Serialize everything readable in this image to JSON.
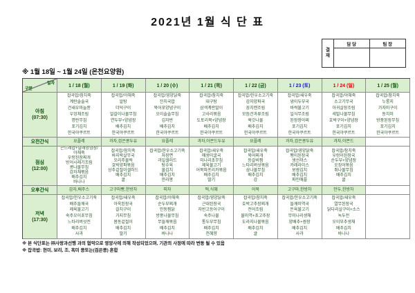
{
  "title": "2021년 1월 식 단 표",
  "approval": {
    "label": "결재",
    "col1": "담 당",
    "col2": "팀 장"
  },
  "period": "※  1월 18일  ~  1월 24일  (온천요양원)",
  "table": {
    "corner": {
      "top": "일자",
      "bottom": "구분"
    },
    "days": [
      {
        "label": "1 / 18 (월)",
        "color": "green"
      },
      {
        "label": "1 / 19 (화)",
        "color": "green"
      },
      {
        "label": "1 / 20 (수)",
        "color": "green"
      },
      {
        "label": "1 / 21 (목)",
        "color": "green"
      },
      {
        "label": "1 / 22 (금)",
        "color": "green"
      },
      {
        "label": "1 / 23 (토)",
        "color": "blue"
      },
      {
        "label": "1 / 24 (일)",
        "color": "red"
      },
      {
        "label": "1 / 25 (월)",
        "color": "green"
      }
    ],
    "rows": [
      {
        "key": "breakfast",
        "label": "아침",
        "time": "(07:30)",
        "cells": [
          [
            "잡곡밥/참치죽",
            "계란솔솔국",
            "건새우마늘쫑",
            "우엉채조림",
            "명란무침",
            "포기김치",
            "한국야쿠르트"
          ],
          [
            "잡곡밥/야채죽",
            "알탕",
            "더덕구이",
            "얼갈이나물무침",
            "연두부+양념장",
            "배추김치",
            "한국야쿠르트"
          ],
          [
            "잡곡밥/영양닭죽",
            "잔치국밥",
            "북어포양념구이",
            "오이솔솔무침",
            "김자반",
            "배추김치",
            "한국야쿠르트"
          ],
          [
            "잡곡밥/참치죽",
            "대구탕",
            "삼색계란말이",
            "고사리볶음",
            "도토리묵+양념장",
            "배추김치",
            "한국야쿠르트"
          ],
          [
            "잡곡밥/한우소고기죽",
            "감자양파국",
            "꽁치캔조림",
            "모듬건과류조림",
            "쑥갓나물",
            "배추김치",
            "한국야쿠르트"
          ],
          [
            "잡곡밥/새우죽",
            "냉이두부국",
            "바싹불고기",
            "일식무조림",
            "된장장아찌",
            "포기김치",
            "한국야쿠르트"
          ],
          [
            "잡곡밥/야채죽",
            "소고기무국",
            "아귀살장조림",
            "세발나물무침",
            "호박구이+양념장",
            "포기김치",
            "한국야쿠르트"
          ],
          [
            "잡곡밥/참치죽",
            "누룽지",
            "가자미구이",
            "동치미",
            "방풍된장무침",
            "포기김치",
            "한국야쿠르트"
          ]
        ]
      },
      {
        "key": "am-snack",
        "label": "오전간식",
        "cells": [
          [
            "요플레"
          ],
          [
            "과자,검은콩두유"
          ],
          [
            "요플레"
          ],
          [
            "과자,아몬드두유"
          ],
          [
            "요플레"
          ],
          [
            "과자,검은콩두유"
          ],
          [
            "과자,아몬드"
          ],
          []
        ]
      },
      {
        "key": "lunch",
        "label": "점심",
        "time": "(12:00)",
        "cells": [
          [
            "곤드레밥+달래양념장/",
            "야채죽",
            "우렁된장찌개",
            "방어시래기조림",
            "콩나물무침",
            "감자채볶음",
            "배추김치",
            "바나나"
          ],
          [
            "잡곡밥/참치죽",
            "바지락살무국",
            "오리주물럭",
            "호박양파볶음",
            "상추겉절이샐러드",
            "배추김치",
            "귤"
          ],
          [
            "잡곡밥/한우소고기죽",
            "자장면",
            "과일샐러드",
            "탕수육",
            "물김치",
            "배추김치",
            "한라봉"
          ],
          [
            "잡곡밥/새우죽",
            "매생이굴국",
            "미나리초무침",
            "제육불고기",
            "어묵파프리카볶음",
            "배추김치",
            "딸기"
          ],
          [
            "잡곡밥/새우죽",
            "북어찌개",
            "등갈비찜",
            "느타리버섯볶음",
            "삼나물무침",
            "배추김치",
            "감"
          ],
          [
            "잡곡밥/영양닭죽",
            "팽이된장국",
            "생선까스",
            "카레라이스",
            "보쌈김치",
            "배추김치",
            "파인애플"
          ],
          [
            "잡곡밥/참치죽",
            "우렁이된장국",
            "순두부+양념장",
            "오징어볶음",
            "취나물무침",
            "배추김치",
            "귤"
          ],
          []
        ]
      },
      {
        "key": "pm-snack",
        "label": "오후간식",
        "cells": [
          [
            "감자,배주스"
          ],
          [
            "고구마빵,한방차"
          ],
          [
            "피자"
          ],
          [
            "떡,식혜"
          ],
          [
            "어묵"
          ],
          [
            "고구마,한방차"
          ],
          [
            "만두,한방차"
          ],
          []
        ]
      },
      {
        "key": "dinner",
        "label": "저녁",
        "time": "(17:30)",
        "cells": [
          [
            "잡곡밥/한우소고기죽",
            "배추들깨국",
            "제육불고기",
            "숙주오이초무침",
            "느타리버섯전",
            "배추김치",
            "사과"
          ],
          [
            "잡곡밥/새우죽",
            "아욱된장국",
            "갈치구이",
            "가지무침",
            "봄동겉절이",
            "배추김치",
            "딸기"
          ],
          [
            "잡곡밥/야채죽",
            "순두부찌개",
            "안동찜닭",
            "방풍나물무침",
            "무들깨볶음",
            "배추김치",
            "바나나"
          ],
          [
            "잡곡밥/영양닭죽",
            "근대된장국",
            "자반고등어구이",
            "숙주나물",
            "통두부무침",
            "배추김치",
            "천혜향"
          ],
          [
            "잡곡밥/참치죽",
            "호박고추장찌개",
            "전어조림",
            "물미역+초고추장",
            "도라지나물볶음",
            "배추김치",
            "귤"
          ],
          [
            "잡곡밥/한우소고기죽",
            "들깨미역국",
            "돈육불고기",
            "무미나리생채",
            "양배추+쌈장",
            "배추김치",
            "사과"
          ],
          [
            "잡곡밥/새우죽",
            "열무된장국",
            "닭다리살구이+소스",
            "녹두전",
            "오이부추생채",
            "배추김치",
            "바나나"
          ],
          []
        ]
      }
    ]
  },
  "notes": [
    "※ 본 식단표는 ㈜사랑과선행 과의 협약으로 영양사에 의해 작성되었으며, 기관의 사정에 따라 변동 될 수 있음",
    "※ 잡곡밥: 현미, 보리, 조, 흑미 콩또는(검은콩) 혼합"
  ],
  "colors": {
    "header_bg": "#d9efd0",
    "header_text": "#0a500a",
    "saturday": "#1717d0",
    "sunday": "#e00000",
    "menu_text": "#2d572d"
  }
}
